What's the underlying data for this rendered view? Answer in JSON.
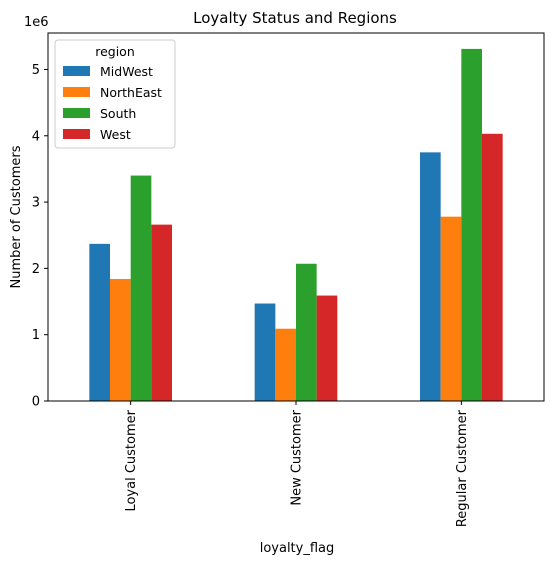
{
  "chart_data": {
    "type": "bar",
    "title": "Loyalty Status and Regions",
    "xlabel": "loyalty_flag",
    "ylabel": "Number of Customers",
    "y_offset_label": "1e6",
    "categories": [
      "Loyal Customer",
      "New Customer",
      "Regular Customer"
    ],
    "series": [
      {
        "name": "MidWest",
        "color": "#1f77b4",
        "values": [
          2.37,
          1.47,
          3.75
        ]
      },
      {
        "name": "NorthEast",
        "color": "#ff7f0e",
        "values": [
          1.84,
          1.09,
          2.78
        ]
      },
      {
        "name": "South",
        "color": "#2ca02c",
        "values": [
          3.4,
          2.07,
          5.31
        ]
      },
      {
        "name": "West",
        "color": "#d62728",
        "values": [
          2.66,
          1.59,
          4.03
        ]
      }
    ],
    "ylim": [
      0,
      5.55
    ],
    "yticks": [
      "0",
      "1",
      "2",
      "3",
      "4",
      "5"
    ],
    "legend": {
      "title": "region",
      "placement": "upper-left"
    },
    "grid": false
  }
}
